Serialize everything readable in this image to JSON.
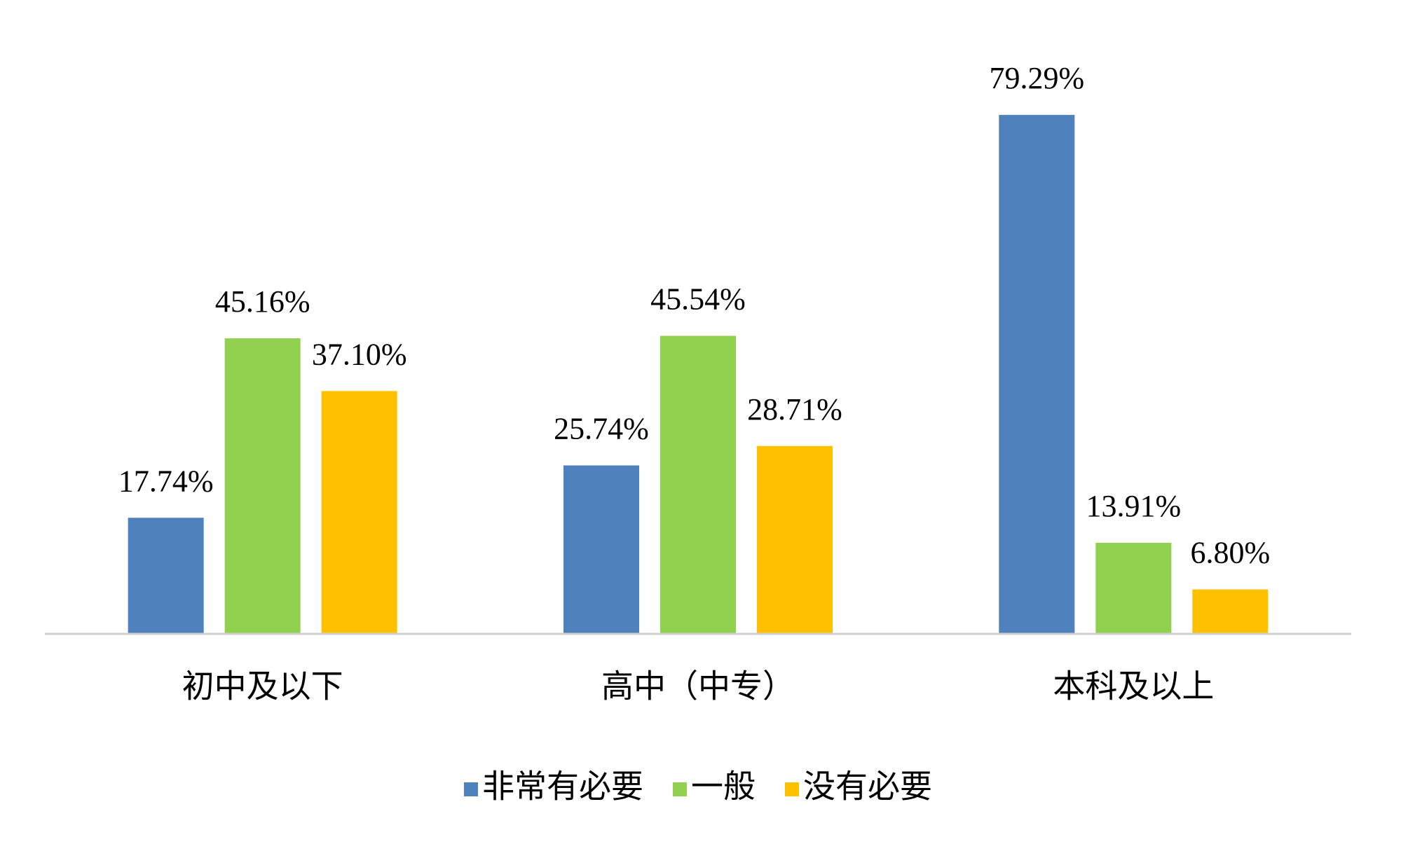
{
  "chart_data": {
    "type": "bar",
    "categories": [
      "初中及以下",
      "高中（中专）",
      "本科及以上"
    ],
    "series": [
      {
        "name": "非常有必要",
        "color": "#4f81bd",
        "values": [
          17.74,
          25.74,
          79.29
        ],
        "value_labels": [
          "17.74%",
          "25.74%",
          "79.29%"
        ]
      },
      {
        "name": "一般",
        "color": "#92d050",
        "values": [
          45.16,
          45.54,
          13.91
        ],
        "value_labels": [
          "45.16%",
          "45.54%",
          "13.91%"
        ]
      },
      {
        "name": "没有必要",
        "color": "#ffc000",
        "values": [
          37.1,
          28.71,
          6.8
        ],
        "value_labels": [
          "37.10%",
          "28.71%",
          "6.80%"
        ]
      }
    ],
    "ylim": [
      0,
      90
    ],
    "grid": false,
    "legend": "bottom"
  }
}
